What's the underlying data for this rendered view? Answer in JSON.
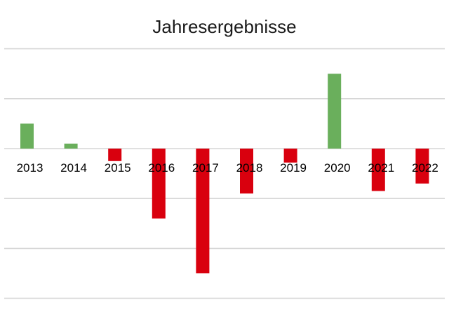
{
  "chart_data": {
    "type": "bar",
    "title": "Jahresergebnisse",
    "xlabel": "",
    "ylabel": "",
    "categories": [
      "2013",
      "2014",
      "2015",
      "2016",
      "2017",
      "2018",
      "2019",
      "2020",
      "2021",
      "2022"
    ],
    "values": [
      0.5,
      0.1,
      -0.25,
      -1.4,
      -2.5,
      -0.9,
      -0.28,
      1.5,
      -0.85,
      -0.7
    ],
    "ylim": [
      -3,
      2
    ],
    "grid": true,
    "legend": "none",
    "y_tick_labels_visible": false,
    "colors": {
      "positive": "#6aaf5c",
      "negative": "#d9000e",
      "grid": "#d6d6d6"
    }
  }
}
